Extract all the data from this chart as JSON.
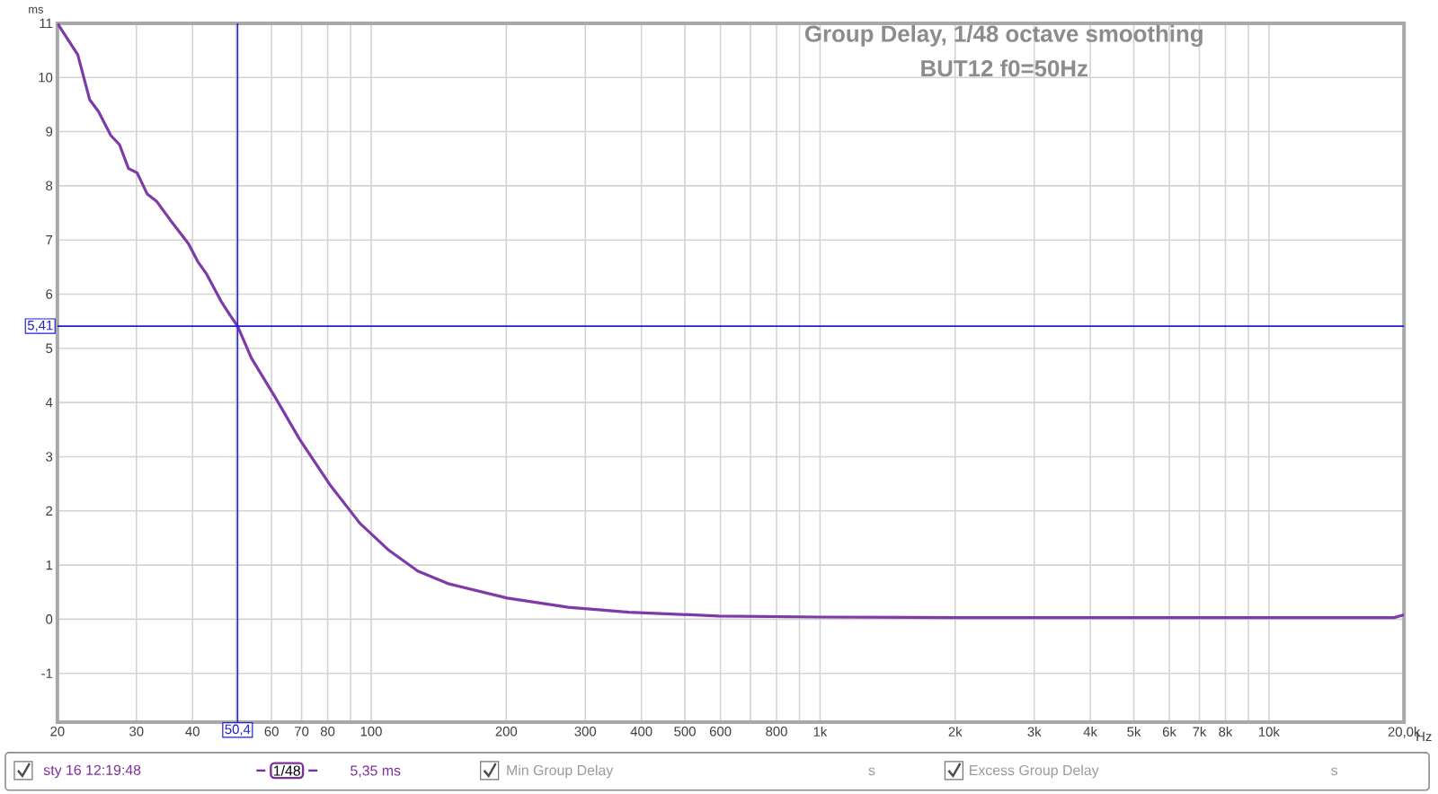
{
  "chart_data": {
    "type": "line",
    "title": "Group Delay, 1/48 octave smoothing",
    "subtitle": "BUT12 f0=50Hz",
    "xlabel": "Hz",
    "ylabel": "ms",
    "log": "x",
    "grid": true,
    "marker": "none",
    "line_style": "solid",
    "xlim": [
      20,
      20000
    ],
    "ylim": [
      -1.9,
      11
    ],
    "xticks": [
      20,
      30,
      40,
      {
        "value": 50,
        "label": null
      },
      60,
      70,
      80,
      {
        "value": 90,
        "label": null
      },
      100,
      200,
      300,
      400,
      500,
      600,
      {
        "value": 700,
        "label": null
      },
      800,
      {
        "value": 900,
        "label": null
      },
      {
        "value": 1000,
        "label": "1k"
      },
      {
        "value": 2000,
        "label": "2k"
      },
      {
        "value": 3000,
        "label": "3k"
      },
      {
        "value": 4000,
        "label": "4k"
      },
      {
        "value": 5000,
        "label": "5k"
      },
      {
        "value": 6000,
        "label": "6k"
      },
      {
        "value": 7000,
        "label": "7k"
      },
      {
        "value": 8000,
        "label": "8k"
      },
      {
        "value": 9000,
        "label": null
      },
      {
        "value": 10000,
        "label": "10k"
      },
      {
        "value": 20000,
        "label": "20,0k"
      }
    ],
    "yticks": [
      -1,
      0,
      1,
      2,
      3,
      4,
      5,
      6,
      7,
      8,
      9,
      10,
      11
    ],
    "x": [
      20,
      22.2,
      23.6,
      24.7,
      26.3,
      27.5,
      28.8,
      30.1,
      31.7,
      33.3,
      35.9,
      39.2,
      41.1,
      43.0,
      46.3,
      48.6,
      50.4,
      54.1,
      61.1,
      69.3,
      80.8,
      94.4,
      109.6,
      127,
      148,
      201,
      275,
      375,
      594,
      1000,
      2000,
      5000,
      10000,
      19000,
      20000
    ],
    "series": [
      {
        "color": "#7e3ba8",
        "values": [
          11.0,
          10.42,
          9.59,
          9.37,
          8.93,
          8.76,
          8.32,
          8.24,
          7.85,
          7.71,
          7.34,
          6.93,
          6.6,
          6.37,
          5.87,
          5.6,
          5.41,
          4.82,
          4.1,
          3.32,
          2.49,
          1.77,
          1.27,
          0.89,
          0.66,
          0.39,
          0.22,
          0.13,
          0.06,
          0.04,
          0.03,
          0.03,
          0.03,
          0.03,
          0.08
        ]
      }
    ],
    "ref_lines": [
      {
        "axis": "x",
        "value": 50.4,
        "label": "50,4",
        "color": "#2020d0"
      },
      {
        "axis": "y",
        "value": 5.41,
        "label": "5,41",
        "color": "#2020d0"
      }
    ],
    "annotations": [
      "sty 16 12:19:48",
      "1/48",
      "5,35 ms",
      "Min Group Delay",
      "s",
      "Excess Group Delay",
      "s"
    ]
  }
}
